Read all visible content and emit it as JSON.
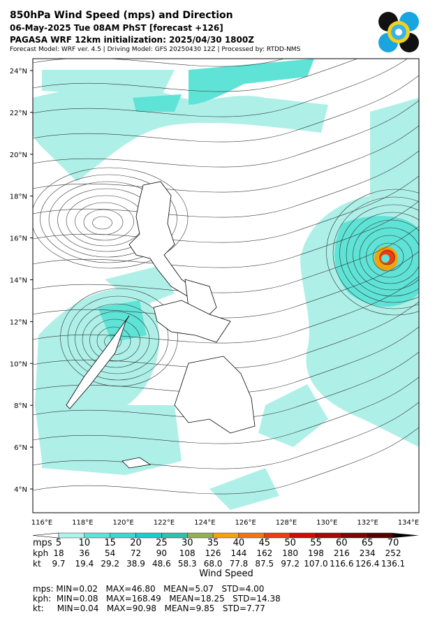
{
  "header": {
    "title": "850hPa Wind Speed (mps) and Direction",
    "subtitle": "06-May-2025 Tue 08AM PhST [forecast +126]",
    "init": "PAGASA WRF 12km initialization: 2025/04/30 1800Z",
    "info": "Forecast Model: WRF ver. 4.5 | Driving Model: GFS 20250430 12Z | Processed by: RTDD-NMS"
  },
  "map": {
    "lat_labels": [
      "24°N",
      "22°N",
      "20°N",
      "18°N",
      "16°N",
      "14°N",
      "12°N",
      "10°N",
      "8°N",
      "6°N",
      "4°N"
    ],
    "lon_labels": [
      "116°E",
      "118°E",
      "120°E",
      "122°E",
      "124°E",
      "126°E",
      "128°E",
      "130°E",
      "132°E",
      "134°E"
    ]
  },
  "colorbar": {
    "label": "Wind Speed",
    "colors": [
      "#b0f2ea",
      "#5ee3d6",
      "#3ad9d0",
      "#18cfcb",
      "#2cc2ab",
      "#92b05a",
      "#f3a20c",
      "#f27412",
      "#f03a10",
      "#d40a0a",
      "#a80808",
      "#7c0606",
      "#520404"
    ],
    "rows": [
      {
        "unit": "mps",
        "labels": [
          "5",
          "10",
          "15",
          "20",
          "25",
          "30",
          "35",
          "40",
          "45",
          "50",
          "55",
          "60",
          "65",
          "70"
        ]
      },
      {
        "unit": "kph",
        "labels": [
          "18",
          "36",
          "54",
          "72",
          "90",
          "108",
          "126",
          "144",
          "162",
          "180",
          "198",
          "216",
          "234",
          "252"
        ]
      },
      {
        "unit": "kt",
        "labels": [
          "9.7",
          "19.4",
          "29.2",
          "38.9",
          "48.6",
          "58.3",
          "68.0",
          "77.8",
          "87.5",
          "97.2",
          "107.0",
          "116.6",
          "126.4",
          "136.1"
        ]
      }
    ]
  },
  "stats": [
    "mps: MIN=0.02   MAX=46.80   MEAN=5.07   STD=4.00",
    "kph:  MIN=0.08   MAX=168.49   MEAN=18.25   STD=14.38",
    "kt:     MIN=0.04   MAX=90.98   MEAN=9.85   STD=7.77"
  ]
}
